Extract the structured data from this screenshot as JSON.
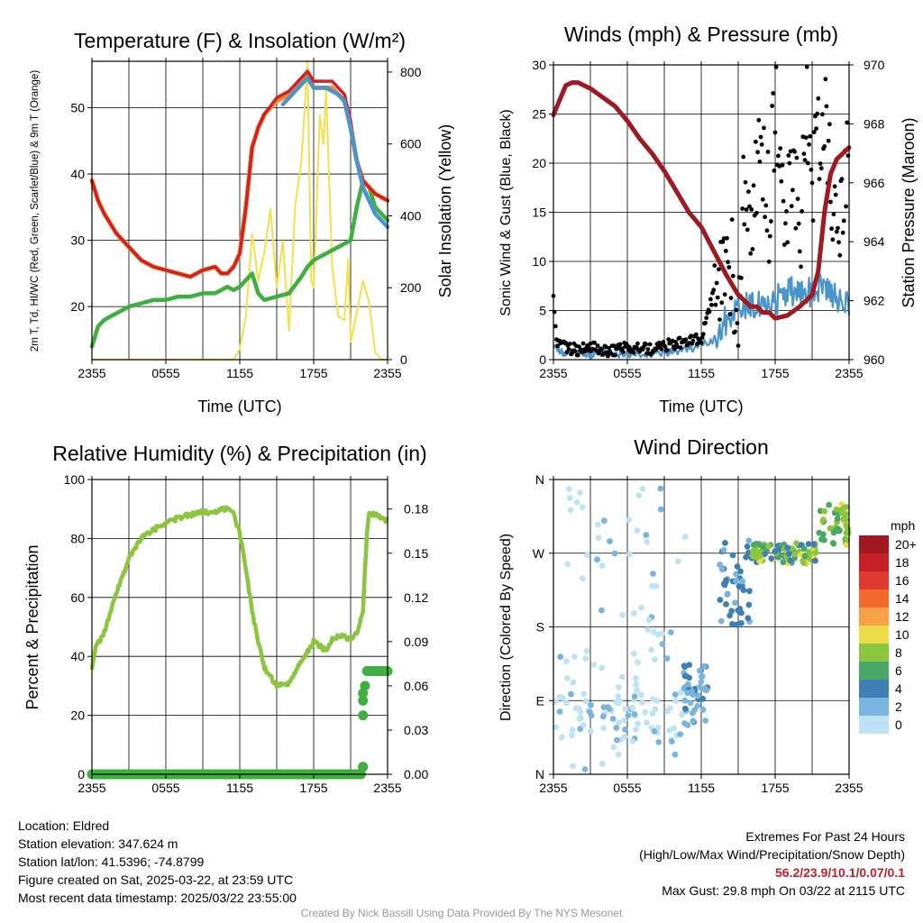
{
  "colors": {
    "temp_red": "#d42020",
    "temp_orange": "#f28a30",
    "hiwc_blue": "#4a94cc",
    "dewpoint_green": "#3fb040",
    "solar_yellow": "#f4e04a",
    "wind_blue": "#4a94cc",
    "gust_black": "#000000",
    "pressure_maroon": "#a01820",
    "rh_green": "#8cc63f",
    "precip_green": "#3fb040",
    "footer_highlight": "#c0202a"
  },
  "chart_data": [
    {
      "type": "line",
      "title": "Temperature (F) & Insolation (W/m²)",
      "xlabel": "Time (UTC)",
      "ylabel": "2m T, Td, HI/WC (Red, Green, Scarlet/Blue) & 9m T (Orange)",
      "y2label": "Solar Insolation (Yellow)",
      "xticks": [
        "2355",
        "0555",
        "1155",
        "1755",
        "2355"
      ],
      "xlim": [
        0,
        24
      ],
      "ylim": [
        12,
        57
      ],
      "y2lim": [
        0,
        830
      ],
      "yticks": [
        20,
        30,
        40,
        50
      ],
      "y2ticks": [
        0,
        200,
        400,
        600,
        800
      ],
      "grid": true,
      "series": [
        {
          "key": "temp_9m",
          "axis": "left",
          "x": [
            0,
            0.5,
            1,
            2,
            3,
            4,
            5,
            6,
            7,
            8,
            9,
            10,
            10.5,
            11,
            11.5,
            12,
            12.5,
            13,
            13.5,
            14,
            15,
            16,
            17,
            17.5,
            18,
            19,
            19.5,
            20,
            20.5,
            21,
            21.5,
            22,
            22.5,
            23,
            24
          ],
          "values": [
            39,
            36,
            34,
            31,
            29,
            27,
            26,
            25.5,
            25,
            24.5,
            25.5,
            26,
            25,
            25,
            26,
            28,
            35,
            44,
            47,
            49,
            51,
            52,
            54,
            55,
            53,
            53,
            53,
            52,
            51,
            47,
            42,
            39,
            38,
            37,
            36
          ]
        },
        {
          "key": "temp_2m",
          "axis": "left",
          "x": [
            0,
            0.5,
            1,
            2,
            3,
            4,
            5,
            6,
            7,
            8,
            9,
            10,
            10.5,
            11,
            11.5,
            12,
            12.5,
            13,
            13.5,
            14,
            15,
            16,
            17,
            17.5,
            18,
            19,
            19.5,
            20,
            20.5,
            21,
            21.5,
            22,
            22.5,
            23,
            24
          ],
          "values": [
            39,
            36,
            34,
            31,
            29,
            27,
            26,
            25.5,
            25,
            24.5,
            25.5,
            26,
            25,
            25,
            26,
            28,
            35,
            44,
            47,
            49,
            51.5,
            52.5,
            54.5,
            55.5,
            54,
            54,
            54,
            53,
            52,
            48,
            42,
            39,
            38,
            37,
            36
          ]
        },
        {
          "key": "hi_wc",
          "axis": "left",
          "x": [
            15.5,
            16,
            17,
            17.5,
            18,
            19,
            20,
            20.5,
            21,
            21.5,
            22,
            22.5,
            23,
            23.5,
            24
          ],
          "values": [
            50.5,
            51.5,
            53.5,
            54.5,
            53,
            53,
            52,
            51,
            47,
            42,
            38,
            36,
            34,
            33,
            32
          ]
        },
        {
          "key": "dewpoint",
          "axis": "left",
          "x": [
            0,
            0.5,
            1,
            2,
            3,
            4,
            5,
            6,
            7,
            8,
            9,
            10,
            10.5,
            11,
            11.5,
            12,
            12.5,
            13,
            13.5,
            14,
            15,
            16,
            17,
            17.5,
            18,
            19,
            20,
            21,
            21.5,
            22,
            22.5,
            23,
            24
          ],
          "values": [
            14,
            17,
            18,
            19,
            20,
            20.5,
            21,
            21,
            21.5,
            21.5,
            22,
            22,
            22.5,
            23,
            22.5,
            23,
            24,
            25,
            22,
            21,
            21.5,
            22,
            24.5,
            26,
            27,
            28,
            29,
            30,
            35,
            39,
            38,
            35,
            33
          ]
        },
        {
          "key": "solar",
          "axis": "right",
          "x": [
            0,
            11.5,
            12,
            12.5,
            13,
            13.5,
            14,
            14.5,
            15,
            15.5,
            16,
            16.5,
            17,
            17.5,
            17.8,
            18,
            18.5,
            18.8,
            19,
            19.5,
            20,
            20.5,
            20.8,
            21,
            21.5,
            22,
            22.5,
            23,
            23.5,
            24
          ],
          "values": [
            0,
            0,
            30,
            120,
            350,
            220,
            300,
            420,
            200,
            330,
            80,
            430,
            550,
            830,
            220,
            200,
            680,
            600,
            750,
            260,
            120,
            110,
            280,
            50,
            130,
            220,
            160,
            20,
            0,
            0
          ]
        }
      ]
    },
    {
      "type": "line",
      "title": "Winds (mph) & Pressure (mb)",
      "xlabel": "Time (UTC)",
      "ylabel": "Sonic Wind & Gust (Blue, Black)",
      "y2label": "Station Pressure (Maroon)",
      "xticks": [
        "2355",
        "0555",
        "1155",
        "1755",
        "2355"
      ],
      "xlim": [
        0,
        24
      ],
      "ylim": [
        0,
        30
      ],
      "y2lim": [
        960,
        970
      ],
      "yticks": [
        0,
        5,
        10,
        15,
        20,
        25,
        30
      ],
      "y2ticks": [
        960,
        962,
        964,
        966,
        968,
        970
      ],
      "grid": true,
      "series": [
        {
          "key": "wind",
          "axis": "left",
          "x": [
            0,
            1,
            2,
            3,
            4,
            5,
            6,
            7,
            8,
            9,
            10,
            11,
            12,
            13,
            13.5,
            14,
            15,
            16,
            17,
            18,
            19,
            20,
            21,
            22,
            22.5,
            23,
            23.5,
            24
          ],
          "values": [
            1.5,
            0.5,
            0.8,
            0.5,
            0.8,
            0.5,
            0.6,
            0.6,
            0.5,
            0.7,
            0.8,
            1,
            1.5,
            2,
            3,
            4,
            5,
            6,
            5,
            6,
            7,
            6.5,
            7,
            8,
            7,
            6,
            5.5,
            6
          ]
        },
        {
          "key": "gust",
          "axis": "left",
          "x": [
            0,
            0.3,
            1,
            2,
            3,
            4,
            5,
            6,
            7,
            8,
            9,
            10,
            11,
            12,
            12.5,
            13,
            13.5,
            14,
            14.5,
            15,
            15.5,
            16,
            16.5,
            17,
            17.5,
            18,
            18.5,
            19,
            19.5,
            20,
            20.5,
            21,
            21.5,
            22,
            22.5,
            23,
            23.5,
            24
          ],
          "values": [
            6.2,
            1.5,
            1.2,
            1,
            1.3,
            1,
            0.9,
            1.2,
            1.1,
            1,
            1.5,
            1.6,
            2,
            2.2,
            4.5,
            7,
            8,
            12,
            9,
            6,
            17,
            13,
            19,
            21,
            15,
            26,
            18,
            14,
            22,
            11,
            28,
            16,
            23,
            25,
            19,
            15,
            17,
            24
          ]
        },
        {
          "key": "pressure",
          "axis": "right",
          "x": [
            0,
            0.5,
            1,
            1.5,
            2,
            3,
            4,
            5,
            6,
            7,
            8,
            9,
            10,
            11,
            12,
            13,
            14,
            15,
            16,
            16.5,
            17,
            17.5,
            18,
            19,
            20,
            21,
            21.5,
            22,
            22.5,
            23,
            23.5,
            24
          ],
          "values": [
            968.3,
            968.8,
            969.3,
            969.4,
            969.4,
            969.2,
            968.9,
            968.6,
            968.1,
            967.5,
            967.0,
            966.4,
            965.7,
            965.0,
            964.5,
            963.7,
            962.9,
            962.2,
            961.8,
            961.8,
            961.6,
            961.6,
            961.4,
            961.5,
            961.8,
            962.2,
            963.0,
            965.0,
            966.3,
            966.8,
            967.0,
            967.2
          ]
        }
      ]
    },
    {
      "type": "line",
      "title": "Relative Humidity (%) & Precipitation (in)",
      "ylabel": "Percent & Precipitation",
      "xticks": [
        "2355",
        "0555",
        "1155",
        "1755",
        "2355"
      ],
      "xlim": [
        0,
        24
      ],
      "ylim": [
        0,
        100
      ],
      "y2lim": [
        0,
        0.2
      ],
      "yticks": [
        0,
        20,
        40,
        60,
        80,
        100
      ],
      "y2ticks": [
        0.0,
        0.03,
        0.06,
        0.09,
        0.12,
        0.15,
        0.18
      ],
      "grid": true,
      "series": [
        {
          "key": "rh",
          "axis": "left",
          "x": [
            0,
            0.3,
            1,
            1.5,
            2,
            3,
            4,
            5,
            6,
            7,
            8,
            9,
            10,
            10.5,
            11,
            11.5,
            12,
            12.5,
            13,
            13.5,
            14,
            15,
            16,
            16.5,
            17,
            18,
            19,
            19.5,
            20,
            21,
            21.5,
            22,
            22.3,
            22.5,
            23,
            24
          ],
          "values": [
            36,
            43,
            48,
            55,
            62,
            73,
            80,
            83,
            85,
            87,
            88,
            89,
            89,
            90,
            90,
            88,
            82,
            70,
            55,
            45,
            36,
            30,
            31,
            35,
            38,
            45,
            42,
            46,
            47,
            46,
            48,
            55,
            80,
            89,
            88,
            86
          ]
        },
        {
          "key": "precip",
          "axis": "right",
          "x": [
            0,
            1,
            2,
            3,
            4,
            5,
            6,
            7,
            8,
            9,
            10,
            11,
            12,
            13,
            14,
            15,
            16,
            17,
            18,
            19,
            20,
            21,
            21.9,
            22,
            22.05,
            22.1,
            22.15,
            22.2,
            22.5,
            23,
            23.5,
            24
          ],
          "values": [
            0,
            0,
            0,
            0,
            0,
            0,
            0,
            0,
            0,
            0,
            0,
            0,
            0,
            0,
            0,
            0,
            0,
            0,
            0,
            0,
            0,
            0,
            0,
            0.005,
            0.04,
            0.05,
            0.055,
            0.07,
            0.07,
            0.07,
            0.07,
            0.07
          ]
        }
      ]
    },
    {
      "type": "scatter",
      "title": "Wind Direction",
      "ylabel": "Direction (Colored By Speed)",
      "xticks": [
        "2355",
        "0555",
        "1155",
        "1755",
        "2355"
      ],
      "yticks": [
        "N",
        "E",
        "S",
        "W",
        "N"
      ],
      "xlim": [
        0,
        24
      ],
      "ylim": [
        0,
        360
      ],
      "grid": true,
      "colorbar": {
        "label": "mph",
        "ticks": [
          "20+",
          "18",
          "16",
          "14",
          "12",
          "10",
          "8",
          "6",
          "4",
          "2",
          "0"
        ],
        "colors": [
          "#a01820",
          "#c42026",
          "#e03a30",
          "#f26a2e",
          "#f8a248",
          "#eddc4a",
          "#8cc63f",
          "#4aa866",
          "#3e7fb6",
          "#7ab5de",
          "#bde3f5"
        ]
      },
      "clusters": [
        {
          "x_range": [
            0,
            11
          ],
          "dir_range": [
            0,
            350
          ],
          "speed_range": [
            0,
            1.5
          ]
        },
        {
          "x_range": [
            10.5,
            12.5
          ],
          "dir_range": [
            60,
            135
          ],
          "speed_range": [
            1,
            4
          ]
        },
        {
          "x_range": [
            13.5,
            16
          ],
          "dir_range": [
            180,
            290
          ],
          "speed_range": [
            2,
            5
          ]
        },
        {
          "x_range": [
            16,
            21.5
          ],
          "dir_range": [
            250,
            295
          ],
          "speed_range": [
            4,
            10
          ]
        },
        {
          "x_range": [
            21.5,
            24
          ],
          "dir_range": [
            280,
            330
          ],
          "speed_range": [
            5,
            10
          ]
        }
      ]
    }
  ],
  "footer": {
    "location": "Location: Eldred",
    "elevation": "Station elevation: 347.624 m",
    "latlon": "Station lat/lon: 41.5396; -74.8799",
    "created": "Figure created on Sat, 2025-03-22, at 23:59 UTC",
    "recent": "Most recent data timestamp: 2025/03/22 23:55:00",
    "extremes_title": "Extremes For Past 24 Hours",
    "extremes_subtitle": "(High/Low/Max Wind/Precipitation/Snow Depth)",
    "extremes_values": "56.2/23.9/10.1/0.07/0.1",
    "max_gust": "Max Gust: 29.8 mph On 03/22 at 2115 UTC",
    "credit": "Created By Nick Bassill Using Data Provided By The NYS Mesonet"
  }
}
